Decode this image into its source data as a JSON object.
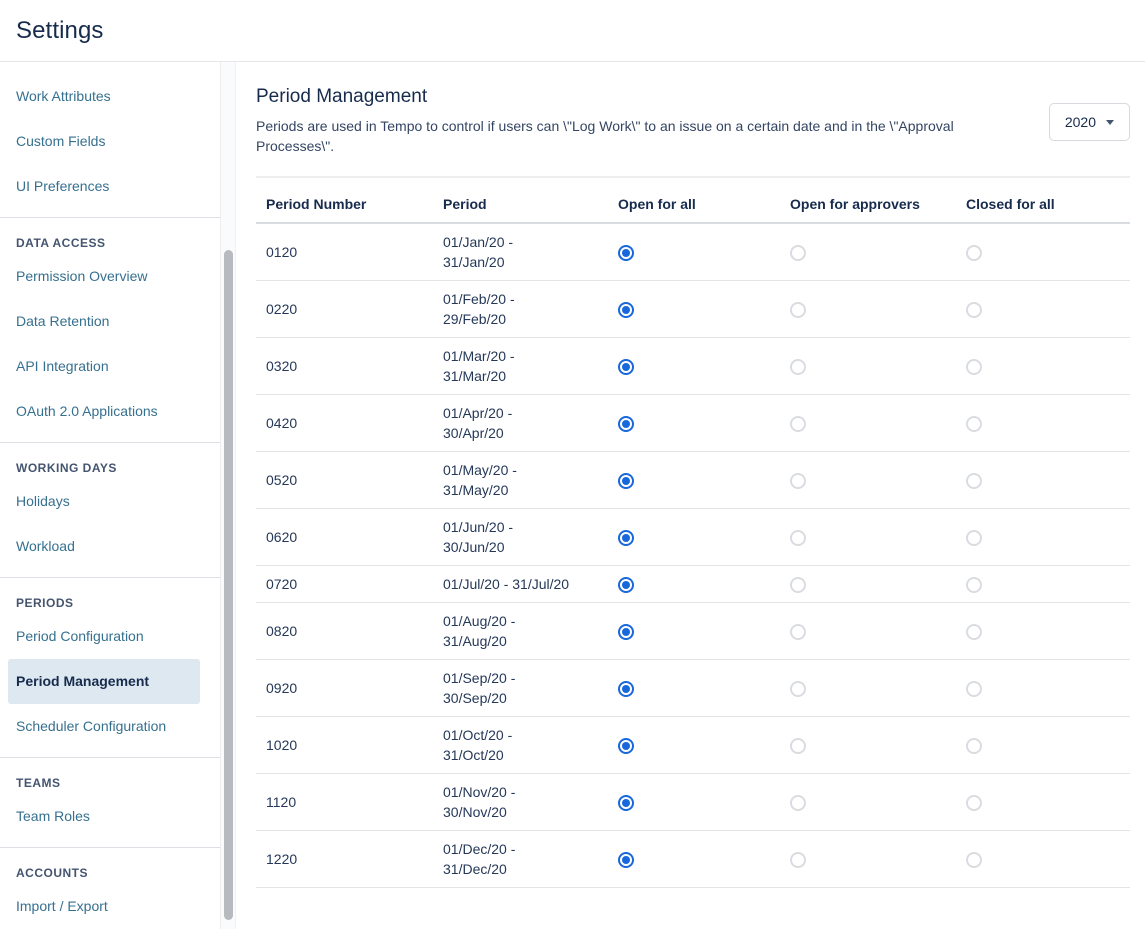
{
  "header": {
    "title": "Settings"
  },
  "sidebar": {
    "active_item": "Period Management",
    "sections": [
      {
        "title": null,
        "items": [
          "Work Attributes",
          "Custom Fields",
          "UI Preferences"
        ]
      },
      {
        "title": "DATA ACCESS",
        "items": [
          "Permission Overview",
          "Data Retention",
          "API Integration",
          "OAuth 2.0 Applications"
        ]
      },
      {
        "title": "WORKING DAYS",
        "items": [
          "Holidays",
          "Workload"
        ]
      },
      {
        "title": "PERIODS",
        "items": [
          "Period Configuration",
          "Period Management",
          "Scheduler Configuration"
        ]
      },
      {
        "title": "TEAMS",
        "items": [
          "Team Roles"
        ]
      },
      {
        "title": "ACCOUNTS",
        "items": [
          "Import / Export"
        ]
      }
    ]
  },
  "main": {
    "title": "Period Management",
    "description": "Periods are used in Tempo to control if users can \\\"Log Work\\\" to an issue on a certain date and in the \\\"Approval Processes\\\".",
    "year_select": {
      "value": "2020"
    }
  },
  "table": {
    "headers": [
      "Period Number",
      "Period",
      "Open for all",
      "Open for approvers",
      "Closed for all"
    ],
    "status_columns": [
      "open_for_all",
      "open_for_approvers",
      "closed_for_all"
    ],
    "rows": [
      {
        "number": "0120",
        "period_lines": [
          "01/Jan/20 -",
          "31/Jan/20"
        ],
        "status": "open_for_all"
      },
      {
        "number": "0220",
        "period_lines": [
          "01/Feb/20 -",
          "29/Feb/20"
        ],
        "status": "open_for_all"
      },
      {
        "number": "0320",
        "period_lines": [
          "01/Mar/20 -",
          "31/Mar/20"
        ],
        "status": "open_for_all"
      },
      {
        "number": "0420",
        "period_lines": [
          "01/Apr/20 -",
          "30/Apr/20"
        ],
        "status": "open_for_all"
      },
      {
        "number": "0520",
        "period_lines": [
          "01/May/20 -",
          "31/May/20"
        ],
        "status": "open_for_all"
      },
      {
        "number": "0620",
        "period_lines": [
          "01/Jun/20 -",
          "30/Jun/20"
        ],
        "status": "open_for_all"
      },
      {
        "number": "0720",
        "period_lines": [
          "01/Jul/20 - 31/Jul/20"
        ],
        "status": "open_for_all"
      },
      {
        "number": "0820",
        "period_lines": [
          "01/Aug/20 -",
          "31/Aug/20"
        ],
        "status": "open_for_all"
      },
      {
        "number": "0920",
        "period_lines": [
          "01/Sep/20 -",
          "30/Sep/20"
        ],
        "status": "open_for_all"
      },
      {
        "number": "1020",
        "period_lines": [
          "01/Oct/20 -",
          "31/Oct/20"
        ],
        "status": "open_for_all"
      },
      {
        "number": "1120",
        "period_lines": [
          "01/Nov/20 -",
          "30/Nov/20"
        ],
        "status": "open_for_all"
      },
      {
        "number": "1220",
        "period_lines": [
          "01/Dec/20 -",
          "31/Dec/20"
        ],
        "status": "open_for_all"
      }
    ]
  },
  "colors": {
    "accent_blue": "#1868db",
    "link": "#36708f",
    "active_item_bg": "#dde8f1",
    "text_dark": "#172b4d"
  }
}
